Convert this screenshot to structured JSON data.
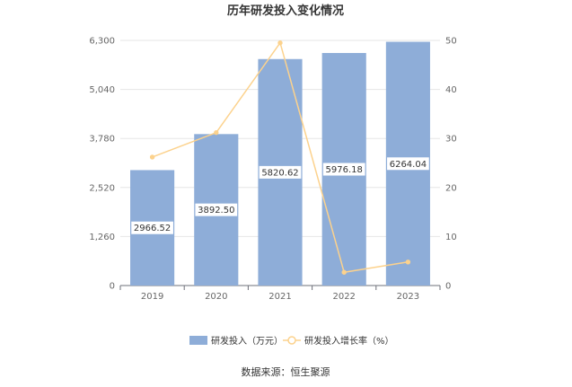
{
  "chart_data": {
    "type": "bar",
    "title": "历年研发投入变化情况",
    "categories": [
      "2019",
      "2020",
      "2021",
      "2022",
      "2023"
    ],
    "series": [
      {
        "name": "研发投入（万元）",
        "type": "bar",
        "axis": "left",
        "color": "#8eadd8",
        "values": [
          2966.52,
          3892.5,
          5820.62,
          5976.18,
          6264.04
        ],
        "labels": [
          "2966.52",
          "3892.50",
          "5820.62",
          "5976.18",
          "6264.04"
        ]
      },
      {
        "name": "研发投入增长率（%）",
        "type": "line",
        "axis": "right",
        "color": "#fcd28d",
        "values": [
          26.2,
          31.2,
          49.5,
          2.7,
          4.8
        ]
      }
    ],
    "y_left": {
      "ylim": [
        0,
        6300
      ],
      "ticks": [
        "0",
        "1,260",
        "2,520",
        "3,780",
        "5,040",
        "6,300"
      ],
      "tick_values": [
        0,
        1260,
        2520,
        3780,
        5040,
        6300
      ]
    },
    "y_right": {
      "ylim": [
        0,
        50
      ],
      "ticks": [
        "0",
        "10",
        "20",
        "30",
        "40",
        "50"
      ],
      "tick_values": [
        0,
        10,
        20,
        30,
        40,
        50
      ]
    },
    "grid": true,
    "legend_position": "bottom"
  },
  "source": "数据来源：恒生聚源"
}
